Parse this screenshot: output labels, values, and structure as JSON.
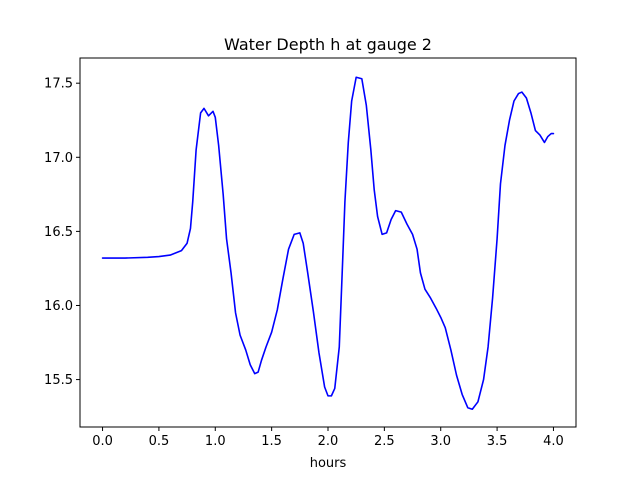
{
  "chart_data": {
    "type": "line",
    "title": "Water Depth h at gauge 2",
    "xlabel": "hours",
    "ylabel": "",
    "xlim": [
      -0.2,
      4.2
    ],
    "ylim": [
      15.18,
      17.67
    ],
    "xticks": [
      0.0,
      0.5,
      1.0,
      1.5,
      2.0,
      2.5,
      3.0,
      3.5,
      4.0
    ],
    "xtick_labels": [
      "0.0",
      "0.5",
      "1.0",
      "1.5",
      "2.0",
      "2.5",
      "3.0",
      "3.5",
      "4.0"
    ],
    "yticks": [
      15.5,
      16.0,
      16.5,
      17.0,
      17.5
    ],
    "ytick_labels": [
      "15.5",
      "16.0",
      "16.5",
      "17.0",
      "17.5"
    ],
    "grid": false,
    "series": [
      {
        "color": "#0000ff",
        "x": [
          0.0,
          0.2,
          0.4,
          0.5,
          0.6,
          0.7,
          0.75,
          0.78,
          0.8,
          0.83,
          0.87,
          0.9,
          0.94,
          0.98,
          1.0,
          1.03,
          1.07,
          1.1,
          1.14,
          1.18,
          1.22,
          1.27,
          1.31,
          1.35,
          1.38,
          1.41,
          1.45,
          1.5,
          1.55,
          1.6,
          1.65,
          1.7,
          1.75,
          1.78,
          1.82,
          1.87,
          1.92,
          1.97,
          2.0,
          2.03,
          2.06,
          2.1,
          2.13,
          2.15,
          2.18,
          2.21,
          2.25,
          2.3,
          2.34,
          2.38,
          2.41,
          2.44,
          2.48,
          2.52,
          2.56,
          2.6,
          2.65,
          2.7,
          2.75,
          2.79,
          2.82,
          2.86,
          2.91,
          2.96,
          3.0,
          3.04,
          3.09,
          3.14,
          3.19,
          3.24,
          3.28,
          3.33,
          3.38,
          3.42,
          3.46,
          3.5,
          3.53,
          3.57,
          3.61,
          3.65,
          3.69,
          3.72,
          3.76,
          3.8,
          3.84,
          3.88,
          3.92,
          3.95,
          3.98,
          4.0
        ],
        "y": [
          16.32,
          16.32,
          16.325,
          16.33,
          16.34,
          16.37,
          16.42,
          16.52,
          16.7,
          17.05,
          17.3,
          17.33,
          17.28,
          17.31,
          17.27,
          17.08,
          16.75,
          16.45,
          16.22,
          15.95,
          15.8,
          15.7,
          15.6,
          15.54,
          15.55,
          15.63,
          15.72,
          15.82,
          15.97,
          16.18,
          16.38,
          16.48,
          16.49,
          16.42,
          16.22,
          15.96,
          15.68,
          15.45,
          15.39,
          15.39,
          15.44,
          15.72,
          16.3,
          16.7,
          17.1,
          17.38,
          17.54,
          17.53,
          17.35,
          17.05,
          16.78,
          16.6,
          16.48,
          16.49,
          16.58,
          16.64,
          16.63,
          16.55,
          16.48,
          16.38,
          16.22,
          16.11,
          16.05,
          15.98,
          15.92,
          15.85,
          15.7,
          15.53,
          15.4,
          15.31,
          15.3,
          15.35,
          15.5,
          15.72,
          16.05,
          16.45,
          16.82,
          17.08,
          17.25,
          17.38,
          17.43,
          17.44,
          17.4,
          17.3,
          17.18,
          17.15,
          17.1,
          17.14,
          17.16,
          17.16
        ]
      }
    ]
  }
}
